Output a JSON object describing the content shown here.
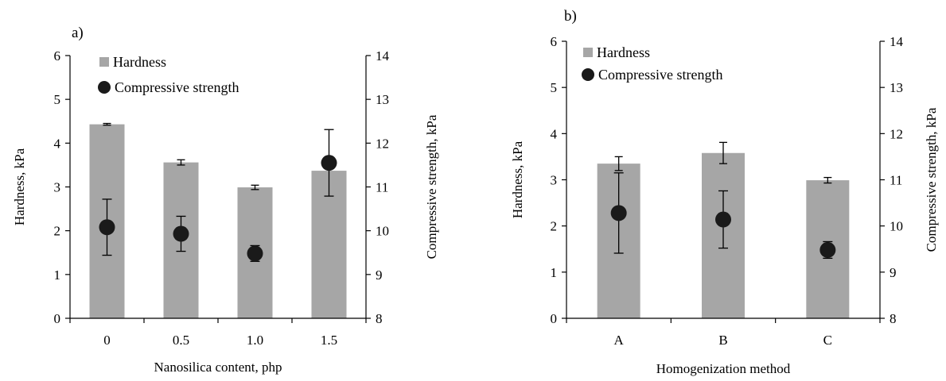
{
  "chart_data": [
    {
      "type": "bar",
      "panel_label": "a)",
      "xlabel": "Nanosilica content, php",
      "ylabel": "Hardness, kPa",
      "y2label": "Compressive strength, kPa",
      "categories": [
        "0",
        "0.5",
        "1.0",
        "1.5"
      ],
      "ylim": [
        0,
        6
      ],
      "y2lim": [
        8,
        14
      ],
      "yticks": [
        "0",
        "1",
        "2",
        "3",
        "4",
        "5",
        "6"
      ],
      "y2ticks": [
        "8",
        "9",
        "10",
        "11",
        "12",
        "13",
        "14"
      ],
      "legend_position": "top-left",
      "grid": false,
      "series": [
        {
          "name": "Hardness",
          "kind": "bar",
          "axis": "left",
          "color": "#a6a6a6",
          "values": [
            4.43,
            3.56,
            2.99,
            3.37
          ],
          "errors": [
            0.02,
            0.06,
            0.05,
            0.0
          ]
        },
        {
          "name": "Compressive strength",
          "kind": "scatter",
          "axis": "right",
          "color": "#1a1a1a",
          "values": [
            10.08,
            9.93,
            9.48,
            11.55
          ],
          "errors": [
            0.64,
            0.4,
            0.18,
            0.76
          ]
        }
      ]
    },
    {
      "type": "bar",
      "panel_label": "b)",
      "xlabel": "Homogenization method",
      "ylabel": "Hardness, kPa",
      "y2label": "Compressive strength, kPa",
      "categories": [
        "A",
        "B",
        "C"
      ],
      "ylim": [
        0,
        6
      ],
      "y2lim": [
        8,
        14
      ],
      "yticks": [
        "0",
        "1",
        "2",
        "3",
        "4",
        "5",
        "6"
      ],
      "y2ticks": [
        "8",
        "9",
        "10",
        "11",
        "12",
        "13",
        "14"
      ],
      "legend_position": "top-left",
      "grid": false,
      "series": [
        {
          "name": "Hardness",
          "kind": "bar",
          "axis": "left",
          "color": "#a6a6a6",
          "values": [
            3.35,
            3.58,
            2.99
          ],
          "errors": [
            0.15,
            0.23,
            0.06
          ]
        },
        {
          "name": "Compressive strength",
          "kind": "scatter",
          "axis": "right",
          "color": "#1a1a1a",
          "values": [
            10.28,
            10.14,
            9.48
          ],
          "errors": [
            0.87,
            0.62,
            0.18
          ]
        }
      ]
    }
  ]
}
